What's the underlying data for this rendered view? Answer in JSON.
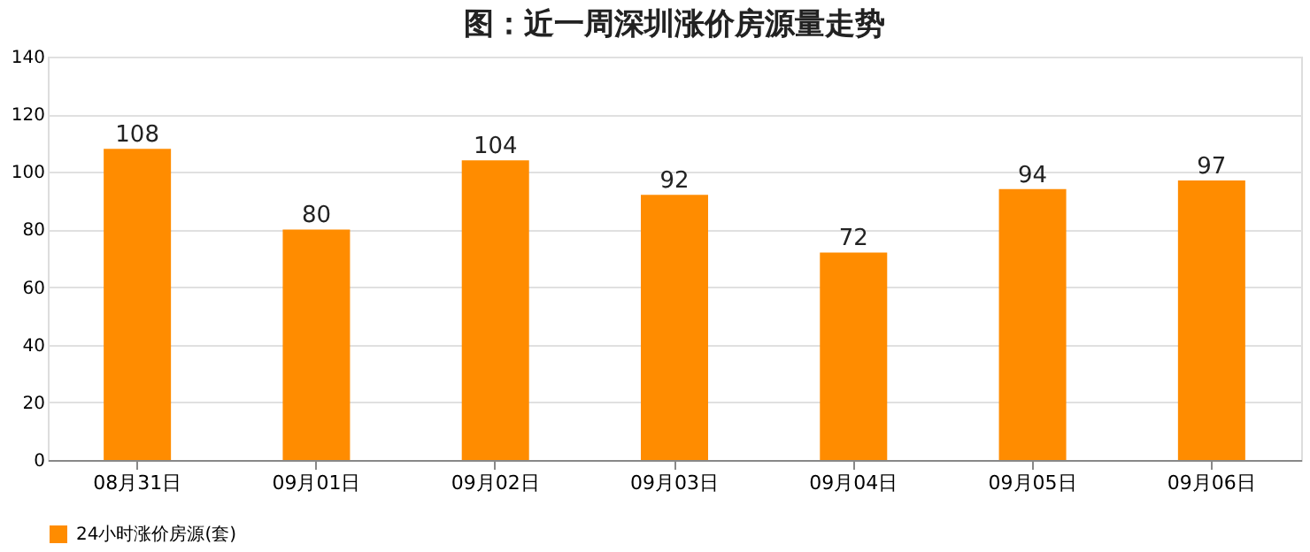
{
  "chart_data": {
    "type": "bar",
    "title": "图：近一周深圳涨价房源量走势",
    "categories": [
      "08月31日",
      "09月01日",
      "09月02日",
      "09月03日",
      "09月04日",
      "09月05日",
      "09月06日"
    ],
    "series": [
      {
        "name": "24小时涨价房源(套)",
        "color": "#ff8c00",
        "values": [
          108,
          80,
          104,
          92,
          72,
          94,
          97
        ]
      }
    ],
    "ylim": [
      0,
      140
    ],
    "yticks": [
      0,
      20,
      40,
      60,
      80,
      100,
      120,
      140
    ],
    "grid": "y",
    "legend": "bottom",
    "data_labels": true
  }
}
